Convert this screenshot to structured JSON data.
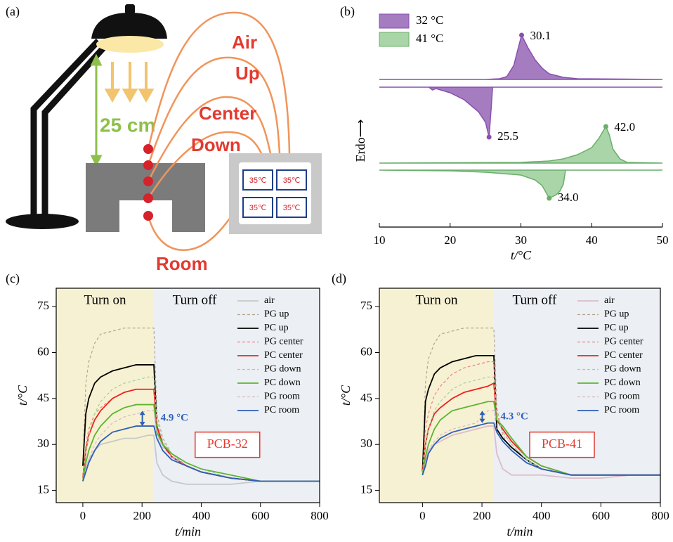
{
  "diagram": {
    "panel": "(a)",
    "distance": "25 cm",
    "sensors": [
      "Air",
      "Up",
      "Center",
      "Down",
      "Room"
    ],
    "display": [
      "35℃",
      "35℃",
      "35℃",
      "35℃"
    ]
  },
  "chart_data": [
    {
      "type": "dsc",
      "panel": "(b)",
      "y_label": "Erdo⟶",
      "x_label": "t/°C",
      "xlim": [
        10,
        50
      ],
      "xticks": [
        10,
        20,
        30,
        40,
        50
      ],
      "series": [
        {
          "name": "32 °C",
          "color": "#a57cc0",
          "stroke": "#8a4fb0",
          "heating_x": [
            10,
            25,
            27,
            28,
            29,
            29.5,
            30.1,
            31,
            32,
            33,
            34,
            36,
            38,
            50
          ],
          "heating_y": [
            0,
            0,
            1,
            4,
            20,
            40,
            63,
            45,
            28,
            16,
            8,
            3,
            1,
            0
          ],
          "cooling_x": [
            10,
            17,
            17.5,
            18,
            20,
            22,
            24,
            25,
            25.5,
            25.8,
            26,
            50
          ],
          "cooling_y": [
            0,
            0,
            -4,
            -2,
            -8,
            -18,
            -35,
            -50,
            -71,
            -30,
            0,
            0
          ],
          "values": [
            30.1,
            25.5
          ]
        },
        {
          "name": "41 °C",
          "color": "#a9d5a9",
          "stroke": "#6aae6a",
          "heating_x": [
            10,
            30,
            34,
            36,
            38,
            40,
            41,
            42,
            42.5,
            43,
            44,
            45,
            50
          ],
          "heating_y": [
            0,
            1,
            3,
            6,
            12,
            22,
            35,
            52,
            40,
            20,
            6,
            1,
            0
          ],
          "cooling_x": [
            10,
            20,
            25,
            30,
            32,
            33,
            34,
            35,
            35.5,
            36,
            36.3,
            50
          ],
          "cooling_y": [
            0,
            -1,
            -3,
            -7,
            -14,
            -22,
            -40,
            -35,
            -30,
            -20,
            0,
            0
          ],
          "values": [
            42,
            34
          ],
          "value_labels": [
            "42.0",
            "34.0"
          ]
        }
      ]
    },
    {
      "type": "line",
      "panel": "(c)",
      "x_label": "t/min",
      "y_label": "t/°C",
      "xlim": [
        -90,
        800
      ],
      "xticks": [
        0,
        200,
        400,
        600,
        800
      ],
      "ylim": [
        11,
        81
      ],
      "yticks": [
        15,
        30,
        45,
        60,
        75
      ],
      "regions": [
        {
          "label": "Turn on",
          "x": [
            -90,
            240
          ],
          "color": "#f7f1d3"
        },
        {
          "label": "Turn off",
          "x": [
            240,
            800
          ],
          "color": "#eceff3"
        }
      ],
      "annotation": "4.9 °C",
      "sample_label": "PCB-32",
      "x": [
        0,
        10,
        20,
        40,
        60,
        100,
        140,
        180,
        220,
        240,
        250,
        270,
        300,
        350,
        400,
        500,
        600,
        700,
        800
      ],
      "series": [
        {
          "name": "air",
          "color": "#c8c8c8",
          "style": "solid",
          "values": [
            18,
            22,
            25,
            28,
            30,
            31,
            32,
            32,
            33,
            33,
            24,
            20,
            18,
            17,
            17,
            17,
            18,
            18,
            18
          ]
        },
        {
          "name": "PG up",
          "color": "#b5a68a",
          "style": "dashed",
          "values": [
            23,
            50,
            57,
            63,
            66,
            67,
            68,
            68,
            68,
            68,
            40,
            32,
            27,
            23,
            21,
            19,
            18,
            18,
            18
          ]
        },
        {
          "name": "PC up",
          "color": "#000000",
          "style": "solid",
          "values": [
            23,
            40,
            45,
            50,
            52,
            54,
            55,
            56,
            56,
            56,
            36,
            30,
            26,
            23,
            21,
            19,
            18,
            18,
            18
          ]
        },
        {
          "name": "PG center",
          "color": "#f08080",
          "style": "dashed",
          "values": [
            19,
            30,
            35,
            40,
            42,
            45,
            47,
            48,
            48,
            48,
            36,
            30,
            26,
            23,
            21,
            19,
            18,
            18,
            18
          ]
        },
        {
          "name": "PC center",
          "color": "#e8251f",
          "style": "solid",
          "values": [
            19,
            28,
            33,
            38,
            41,
            45,
            47,
            48,
            48,
            48,
            36,
            30,
            26,
            23,
            21,
            19,
            18,
            18,
            18
          ]
        },
        {
          "name": "PG down",
          "color": "#9ed49a",
          "style": "dashed",
          "values": [
            19,
            28,
            33,
            40,
            44,
            48,
            50,
            51,
            52,
            52,
            38,
            31,
            27,
            24,
            22,
            19,
            18,
            18,
            18
          ]
        },
        {
          "name": "PC down",
          "color": "#5cb531",
          "style": "solid",
          "values": [
            18,
            24,
            28,
            33,
            36,
            40,
            42,
            43,
            43,
            43,
            34,
            30,
            27,
            24,
            22,
            20,
            18,
            18,
            18
          ]
        },
        {
          "name": "PG room",
          "color": "#d7b9c8",
          "style": "dashed",
          "values": [
            18,
            22,
            25,
            30,
            33,
            37,
            39,
            40,
            41,
            41,
            33,
            29,
            26,
            23,
            21,
            19,
            18,
            18,
            18
          ]
        },
        {
          "name": "PC room",
          "color": "#2f5fb8",
          "style": "solid",
          "values": [
            18,
            21,
            24,
            28,
            31,
            34,
            35,
            36,
            36,
            36,
            32,
            28,
            25,
            23,
            21,
            19,
            18,
            18,
            18
          ]
        }
      ]
    },
    {
      "type": "line",
      "panel": "(d)",
      "x_label": "t/min",
      "y_label": "t/°C",
      "xlim": [
        -145,
        800
      ],
      "xticks": [
        0,
        200,
        400,
        600,
        800
      ],
      "ylim": [
        11,
        81
      ],
      "yticks": [
        15,
        30,
        45,
        60,
        75
      ],
      "regions": [
        {
          "label": "Turn on",
          "x": [
            -145,
            240
          ],
          "color": "#f7f1d3"
        },
        {
          "label": "Turn off",
          "x": [
            240,
            800
          ],
          "color": "#eceff3"
        }
      ],
      "annotation": "4.3 °C",
      "sample_label": "PCB-41",
      "x": [
        0,
        10,
        20,
        40,
        60,
        100,
        140,
        180,
        220,
        240,
        250,
        270,
        300,
        350,
        400,
        500,
        600,
        700,
        800
      ],
      "series": [
        {
          "name": "air",
          "color": "#dcbccb",
          "style": "solid",
          "values": [
            20,
            25,
            28,
            30,
            31,
            33,
            34,
            35,
            36,
            36,
            27,
            22,
            20,
            20,
            20,
            19,
            19,
            20,
            20
          ]
        },
        {
          "name": "PG up",
          "color": "#b5a68a",
          "style": "dashed",
          "values": [
            21,
            50,
            58,
            63,
            66,
            67,
            68,
            68,
            68,
            68,
            42,
            33,
            28,
            24,
            22,
            20,
            20,
            20,
            20
          ]
        },
        {
          "name": "PC up",
          "color": "#000000",
          "style": "solid",
          "values": [
            21,
            44,
            48,
            53,
            55,
            57,
            58,
            59,
            59,
            59,
            35,
            32,
            29,
            25,
            22,
            20,
            20,
            20,
            20
          ]
        },
        {
          "name": "PG center",
          "color": "#f08080",
          "style": "dashed",
          "values": [
            21,
            35,
            40,
            46,
            49,
            53,
            55,
            56,
            57,
            57,
            40,
            34,
            30,
            25,
            22,
            20,
            20,
            20,
            20
          ]
        },
        {
          "name": "PC center",
          "color": "#e8251f",
          "style": "solid",
          "values": [
            21,
            30,
            35,
            40,
            42,
            45,
            47,
            48,
            49,
            50,
            38,
            35,
            31,
            26,
            23,
            20,
            20,
            20,
            20
          ]
        },
        {
          "name": "PG down",
          "color": "#9ed49a",
          "style": "dashed",
          "values": [
            21,
            30,
            35,
            41,
            44,
            48,
            50,
            51,
            52,
            52,
            40,
            34,
            30,
            25,
            22,
            20,
            20,
            20,
            20
          ]
        },
        {
          "name": "PC down",
          "color": "#5cb531",
          "style": "solid",
          "values": [
            20,
            26,
            30,
            35,
            38,
            41,
            42,
            43,
            44,
            44,
            38,
            36,
            32,
            26,
            23,
            20,
            20,
            20,
            20
          ]
        },
        {
          "name": "PG room",
          "color": "#d7b9c8",
          "style": "dashed",
          "values": [
            20,
            24,
            28,
            31,
            33,
            35,
            36,
            37,
            41,
            41,
            34,
            31,
            28,
            24,
            22,
            20,
            20,
            20,
            20
          ]
        },
        {
          "name": "PC room",
          "color": "#2f5fb8",
          "style": "solid",
          "values": [
            20,
            23,
            27,
            30,
            32,
            34,
            35,
            36,
            37,
            37,
            34,
            31,
            28,
            24,
            22,
            20,
            20,
            20,
            20
          ]
        }
      ]
    }
  ]
}
